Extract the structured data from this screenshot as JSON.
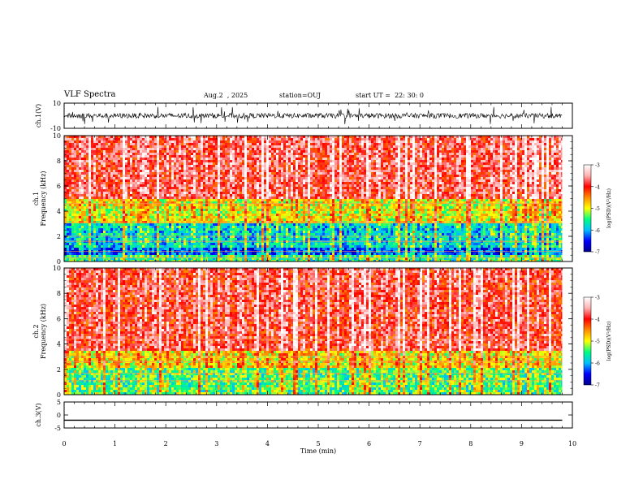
{
  "header": {
    "title": "VLF Spectra",
    "date": "Aug.2  , 2025",
    "station": "station=OUJ",
    "start": "start UT =  22: 30: 0"
  },
  "chart_data": [
    {
      "type": "line",
      "name": "ch1-waveform",
      "ylabel": "ch.1(V)",
      "ylim": [
        -10,
        10
      ],
      "yticks": [
        "10",
        "-10"
      ],
      "x_range_min": [
        0,
        9.8
      ],
      "description_level": "noisy waveform around y=0 with spikes"
    },
    {
      "type": "heatmap",
      "name": "ch1-spectrogram",
      "ylabel": "ch.1\nFrequency (kHz)",
      "ylabel_lines": [
        "ch.1",
        "Frequency (kHz)"
      ],
      "ylim": [
        0,
        10
      ],
      "yticks": [
        "0",
        "2",
        "4",
        "6",
        "8",
        "10"
      ],
      "x_range_min": [
        0,
        9.8
      ],
      "colorbar": {
        "label": "log(PSD)(V²/Hz)",
        "ticks": [
          "-3",
          "-4",
          "-5",
          "-6",
          "-7"
        ],
        "range": [
          -7,
          -3
        ]
      }
    },
    {
      "type": "heatmap",
      "name": "ch2-spectrogram",
      "ylabel": "ch.2\nFrequency (kHz)",
      "ylabel_lines": [
        "ch.2",
        "Frequency (kHz)"
      ],
      "ylim": [
        0,
        10
      ],
      "yticks": [
        "0",
        "2",
        "4",
        "6",
        "8",
        "10"
      ],
      "x_range_min": [
        0,
        9.8
      ],
      "colorbar": {
        "label": "log(PSD)(V²/Hz)",
        "ticks": [
          "-3",
          "-4",
          "-5",
          "-6",
          "-7"
        ],
        "range": [
          -7,
          -3
        ]
      }
    },
    {
      "type": "line",
      "name": "ch3-waveform",
      "ylabel": "ch.3(V)",
      "ylim": [
        -5,
        5
      ],
      "yticks": [
        "5",
        "0",
        "-5"
      ],
      "x": [
        0,
        9.8
      ],
      "y": [
        -2,
        -2
      ]
    }
  ],
  "xaxis": {
    "label": "Time (min)",
    "range": [
      0,
      10
    ],
    "ticks": [
      "0",
      "1",
      "2",
      "3",
      "4",
      "5",
      "6",
      "7",
      "8",
      "9",
      "10"
    ]
  },
  "colors": {
    "colormap": [
      "#00008b",
      "#0000ff",
      "#00bfff",
      "#00ff80",
      "#ffff00",
      "#ff8c00",
      "#ff0000",
      "#ffb0b0",
      "#ffffff"
    ]
  }
}
